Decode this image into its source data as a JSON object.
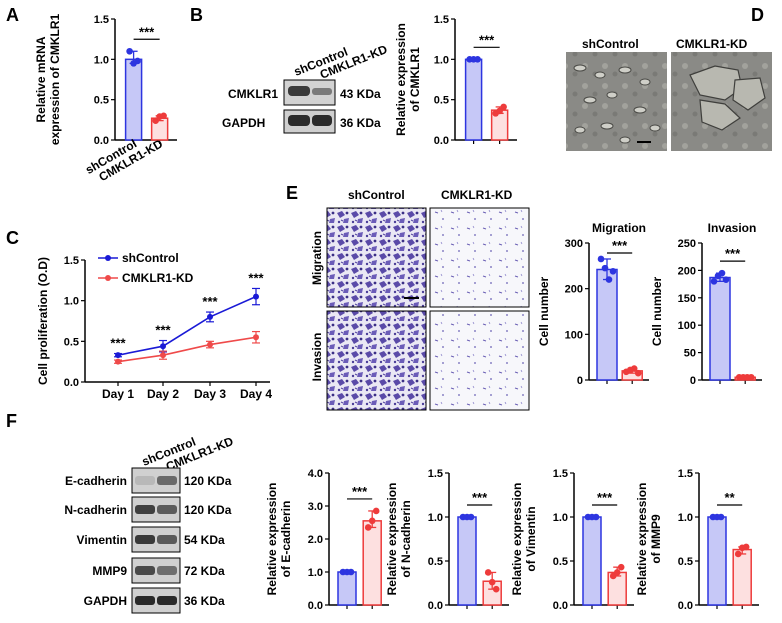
{
  "colors": {
    "control": "#2d35e0",
    "control_fill": "#c6c8f7",
    "kd": "#ee3b3b",
    "kd_fill": "#fde0e0",
    "blue_line": "#1a1ad6",
    "red_line": "#ef4a4a"
  },
  "panels": {
    "A": "A",
    "B": "B",
    "C": "C",
    "D": "D",
    "E": "E",
    "F": "F"
  },
  "groups": {
    "control": "shControl",
    "kd": "CMKLR1-KD"
  },
  "blotB": {
    "bands": [
      {
        "protein": "CMKLR1",
        "size": "43 KDa"
      },
      {
        "protein": "GAPDH",
        "size": "36 KDa"
      }
    ]
  },
  "blotF": {
    "bands": [
      {
        "protein": "E-cadherin",
        "size": "120 KDa"
      },
      {
        "protein": "N-cadherin",
        "size": "120 KDa"
      },
      {
        "protein": "Vimentin",
        "size": "54 KDa"
      },
      {
        "protein": "MMP9",
        "size": "72 KDa"
      },
      {
        "protein": "GAPDH",
        "size": "36 KDa"
      }
    ]
  },
  "microscopy": {
    "rows": [
      "Migration",
      "Invasion"
    ]
  },
  "chart_data": [
    {
      "id": "A",
      "type": "bar",
      "categories": [
        "shControl",
        "CMKLR1-KD"
      ],
      "values": [
        1.0,
        0.27
      ],
      "points": [
        [
          1.1,
          0.95,
          0.98
        ],
        [
          0.24,
          0.29,
          0.3
        ]
      ],
      "ylabel": [
        "Relative mRNA",
        "expression of CMKLR1"
      ],
      "yticks": [
        "0.0",
        "0.5",
        "1.0",
        "1.5"
      ],
      "ylim": [
        0,
        1.5
      ],
      "significance": "***"
    },
    {
      "id": "B",
      "type": "bar",
      "categories": [
        "shControl",
        "CMKLR1-KD"
      ],
      "values": [
        1.0,
        0.37
      ],
      "points": [
        [
          1.0,
          1.0,
          1.0
        ],
        [
          0.33,
          0.36,
          0.41
        ]
      ],
      "ylabel": [
        "Relative expression",
        "of CMKLR1"
      ],
      "yticks": [
        "0.0",
        "0.5",
        "1.0",
        "1.5"
      ],
      "ylim": [
        0,
        1.5
      ],
      "significance": "***"
    },
    {
      "id": "C",
      "type": "line",
      "x": [
        "Day 1",
        "Day 2",
        "Day 3",
        "Day 4"
      ],
      "series": [
        {
          "name": "shControl",
          "values": [
            0.33,
            0.44,
            0.8,
            1.05
          ],
          "errors": [
            0.02,
            0.07,
            0.06,
            0.1
          ]
        },
        {
          "name": "CMKLR1-KD",
          "values": [
            0.25,
            0.33,
            0.46,
            0.55
          ],
          "errors": [
            0.02,
            0.05,
            0.04,
            0.07
          ]
        }
      ],
      "ylabel": "Cell proliferation (O.D)",
      "yticks": [
        "0.0",
        "0.5",
        "1.0",
        "1.5"
      ],
      "ylim": [
        0,
        1.5
      ],
      "significance": [
        "***",
        "***",
        "***",
        "***"
      ]
    },
    {
      "id": "E-migration",
      "type": "bar",
      "title": "Migration",
      "categories": [
        "shControl",
        "CMKLR1-KD"
      ],
      "values": [
        242,
        20
      ],
      "points": [
        [
          265,
          245,
          220,
          238
        ],
        [
          18,
          22,
          25,
          15
        ]
      ],
      "ylabel": "Cell number",
      "yticks": [
        "0",
        "100",
        "200",
        "300"
      ],
      "ylim": [
        0,
        300
      ],
      "significance": "***"
    },
    {
      "id": "E-invasion",
      "type": "bar",
      "title": "Invasion",
      "categories": [
        "shControl",
        "CMKLR1-KD"
      ],
      "values": [
        187,
        5
      ],
      "points": [
        [
          180,
          190,
          195,
          183
        ],
        [
          5,
          5,
          5,
          5
        ]
      ],
      "ylabel": "Cell number",
      "yticks": [
        "0",
        "50",
        "100",
        "150",
        "200",
        "250"
      ],
      "ylim": [
        0,
        250
      ],
      "significance": "***"
    },
    {
      "id": "F-ecad",
      "type": "bar",
      "categories": [
        "shControl",
        "CMKLR1-KD"
      ],
      "values": [
        1.0,
        2.55
      ],
      "points": [
        [
          1.0,
          1.0,
          1.0
        ],
        [
          2.35,
          2.55,
          2.85
        ]
      ],
      "ylabel": [
        "Relative expression",
        "of E-cadherin"
      ],
      "yticks": [
        "0.0",
        "1.0",
        "2.0",
        "3.0",
        "4.0"
      ],
      "ylim": [
        0,
        4
      ],
      "significance": "***"
    },
    {
      "id": "F-ncad",
      "type": "bar",
      "categories": [
        "shControl",
        "CMKLR1-KD"
      ],
      "values": [
        1.0,
        0.27
      ],
      "points": [
        [
          1.0,
          1.0,
          1.0
        ],
        [
          0.37,
          0.26,
          0.18
        ]
      ],
      "ylabel": [
        "Relative expression",
        "of N-cadherin"
      ],
      "yticks": [
        "0.0",
        "0.5",
        "1.0",
        "1.5"
      ],
      "ylim": [
        0,
        1.5
      ],
      "significance": "***"
    },
    {
      "id": "F-vim",
      "type": "bar",
      "categories": [
        "shControl",
        "CMKLR1-KD"
      ],
      "values": [
        1.0,
        0.37
      ],
      "points": [
        [
          1.0,
          1.0,
          1.0
        ],
        [
          0.33,
          0.37,
          0.43
        ]
      ],
      "ylabel": [
        "Relative expression",
        "of Vimentin"
      ],
      "yticks": [
        "0.0",
        "0.5",
        "1.0",
        "1.5"
      ],
      "ylim": [
        0,
        1.5
      ],
      "significance": "***"
    },
    {
      "id": "F-mmp9",
      "type": "bar",
      "categories": [
        "shControl",
        "CMKLR1-KD"
      ],
      "values": [
        1.0,
        0.63
      ],
      "points": [
        [
          1.0,
          1.0,
          1.0
        ],
        [
          0.58,
          0.65,
          0.66
        ]
      ],
      "ylabel": [
        "Relative expression",
        "of MMP9"
      ],
      "yticks": [
        "0.0",
        "0.5",
        "1.0",
        "1.5"
      ],
      "ylim": [
        0,
        1.5
      ],
      "significance": "**"
    }
  ]
}
